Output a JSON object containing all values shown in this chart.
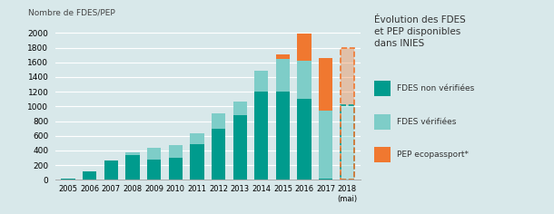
{
  "years": [
    "2005",
    "2006",
    "2007",
    "2008",
    "2009",
    "2010",
    "2011",
    "2012",
    "2013",
    "2014",
    "2015",
    "2016",
    "2017",
    "2018\n(mai)"
  ],
  "fdes_non_verifiees": [
    20,
    110,
    260,
    340,
    280,
    300,
    490,
    700,
    880,
    1200,
    1200,
    1100,
    20,
    0
  ],
  "fdes_verifiees": [
    0,
    0,
    0,
    30,
    160,
    170,
    140,
    200,
    185,
    290,
    450,
    520,
    920,
    1020
  ],
  "pep_ecopassport": [
    0,
    0,
    0,
    0,
    0,
    0,
    0,
    0,
    0,
    0,
    60,
    370,
    720,
    770
  ],
  "color_fdes_non": "#009B8D",
  "color_fdes_ver": "#7ECDC8",
  "color_pep": "#F07830",
  "bg_color": "#d8e8ea",
  "ylim": [
    0,
    2100
  ],
  "yticks": [
    0,
    200,
    400,
    600,
    800,
    1000,
    1200,
    1400,
    1600,
    1800,
    2000
  ],
  "ylabel": "Nombre de FDES/PEP",
  "legend_title": "Évolution des FDES\net PEP disponibles\ndans INIES",
  "legend_fdes_non": "FDES non vérifiées",
  "legend_fdes_ver": "FDES vérifiées",
  "legend_pep": "PEP ecopassport*",
  "dashed_bar_index": 13
}
